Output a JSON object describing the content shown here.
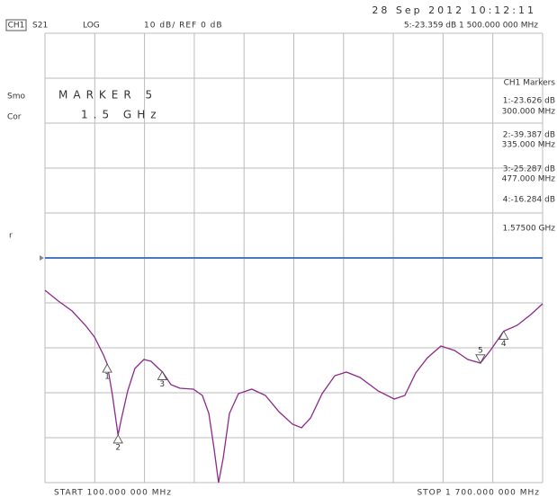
{
  "chart_data": {
    "type": "line",
    "header": {
      "channel": "CH1",
      "param": "S21",
      "format": "LOG",
      "scale": "10 dB/ REF 0 dB",
      "date": "28 Sep 2012  10:12:11",
      "active_marker": "5:-23.359 dB   1 500.000 000 MHz"
    },
    "side_labels": [
      "Smo",
      "Cor",
      "r"
    ],
    "marker_box": {
      "title": "MARKER 5",
      "value": "1.5 GHz"
    },
    "marker_table": {
      "title": "CH1 Markers",
      "entries": [
        {
          "value": "1:-23.626 dB",
          "freq": "300.000 MHz"
        },
        {
          "value": "2:-39.387 dB",
          "freq": "335.000 MHz"
        },
        {
          "value": "3:-25.287 dB",
          "freq": "477.000 MHz"
        },
        {
          "value": "4:-16.284 dB",
          "freq": "1.57500 GHz"
        }
      ]
    },
    "start_label": "START 100.000 000 MHz",
    "stop_label": "STOP 1 700.000 000 MHz",
    "xlim": [
      100,
      1700
    ],
    "ylim": [
      -50,
      50
    ],
    "grid": true,
    "ref_value": 0,
    "ref_color": "#4a78c0",
    "color": "#8b2a8b",
    "x": [
      100,
      143,
      187,
      230,
      259,
      288,
      300,
      317,
      330,
      335,
      345,
      366,
      389,
      418,
      441,
      465,
      477,
      505,
      534,
      577,
      606,
      627,
      644,
      658,
      673,
      693,
      722,
      765,
      809,
      852,
      896,
      925,
      954,
      991,
      1032,
      1069,
      1113,
      1171,
      1223,
      1257,
      1292,
      1330,
      1373,
      1417,
      1460,
      1500,
      1532,
      1575,
      1618,
      1662,
      1700
    ],
    "values": [
      -7.2,
      -9.6,
      -11.8,
      -15,
      -17.6,
      -21.6,
      -23.6,
      -30.6,
      -37,
      -39.4,
      -36,
      -29.6,
      -24.6,
      -22.6,
      -23,
      -24.6,
      -25.3,
      -28.2,
      -29,
      -29.2,
      -30.6,
      -34.6,
      -42.6,
      -50,
      -44.6,
      -34.6,
      -30.2,
      -29.2,
      -30.6,
      -34.2,
      -37,
      -37.8,
      -35.6,
      -30.2,
      -26.2,
      -25.4,
      -26.6,
      -29.6,
      -31.4,
      -30.6,
      -25.6,
      -22.2,
      -19.6,
      -20.6,
      -22.6,
      -23.4,
      -20.6,
      -16.3,
      -15,
      -12.6,
      -10.2
    ],
    "markers": {
      "x": [
        300,
        335,
        477,
        1575,
        1500
      ],
      "values": [
        -23.626,
        -39.387,
        -25.287,
        -16.284,
        -23.359
      ],
      "labels": [
        "1",
        "2",
        "3",
        "4",
        "5"
      ]
    }
  }
}
